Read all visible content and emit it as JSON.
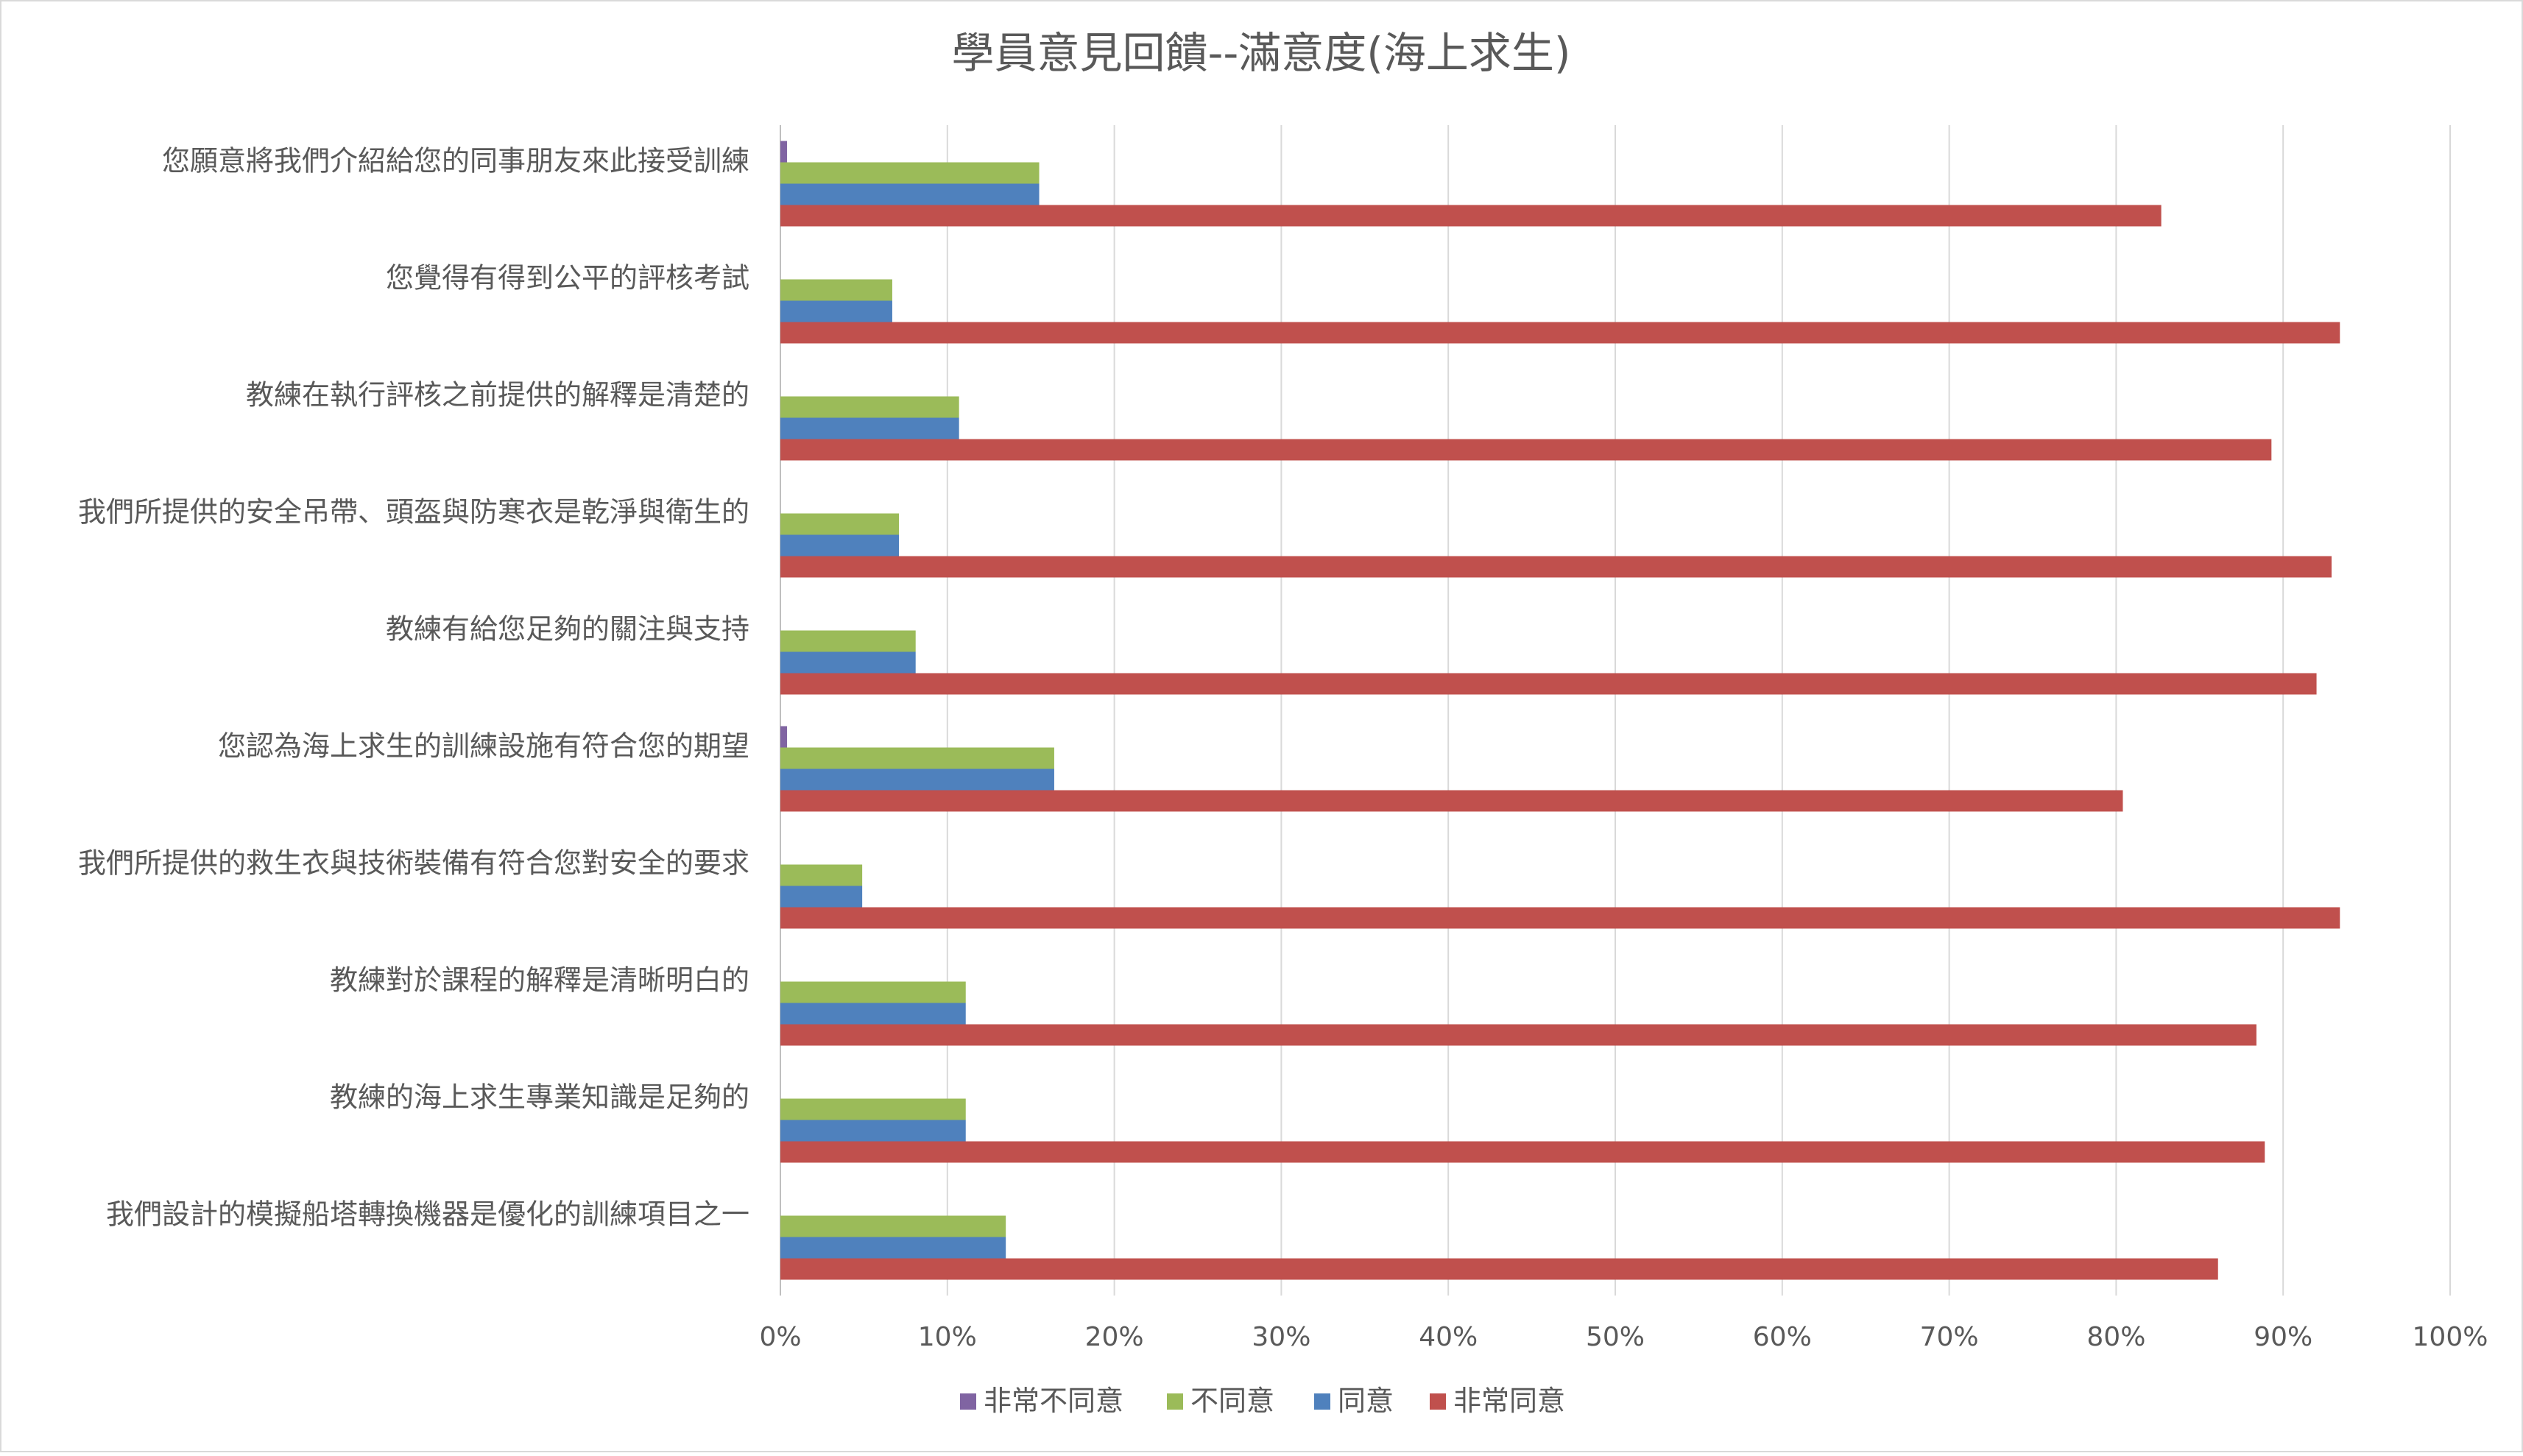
{
  "chart_data": {
    "type": "bar",
    "orientation": "horizontal",
    "title": "學員意見回饋--滿意度(海上求生)",
    "categories": [
      "您願意將我們介紹給您的同事朋友來此接受訓練",
      "您覺得有得到公平的評核考試",
      "教練在執行評核之前提供的解釋是清楚的",
      "我們所提供的安全吊帶、頭盔與防寒衣是乾淨與衛生的",
      "教練有給您足夠的關注與支持",
      "您認為海上求生的訓練設施有符合您的期望",
      "我們所提供的救生衣與技術裝備有符合您對安全的要求",
      "教練對於課程的解釋是清晰明白的",
      "教練的海上求生專業知識是足夠的",
      "我們設計的模擬船塔轉換機器是優化的訓練項目之一"
    ],
    "series": [
      {
        "name": "非常不同意",
        "color": "#8064A2",
        "values": [
          0.4,
          0,
          0,
          0,
          0,
          0.4,
          0,
          0,
          0,
          0
        ]
      },
      {
        "name": "不同意",
        "color": "#9BBB59",
        "values": [
          15.5,
          6.7,
          10.7,
          7.1,
          8.1,
          16.4,
          4.9,
          11.1,
          11.1,
          13.5
        ]
      },
      {
        "name": "同意",
        "color": "#4F81BD",
        "values": [
          15.5,
          6.7,
          10.7,
          7.1,
          8.1,
          16.4,
          4.9,
          11.1,
          11.1,
          13.5
        ]
      },
      {
        "name": "非常同意",
        "color": "#C0504D",
        "values": [
          82.7,
          93.4,
          89.3,
          92.9,
          92.0,
          80.4,
          93.4,
          88.4,
          88.9,
          86.1
        ]
      }
    ],
    "xlim": [
      0,
      100
    ],
    "x_ticks": [
      "0%",
      "10%",
      "20%",
      "30%",
      "40%",
      "50%",
      "60%",
      "70%",
      "80%",
      "90%",
      "100%"
    ],
    "grid": true,
    "legend_position": "bottom"
  }
}
